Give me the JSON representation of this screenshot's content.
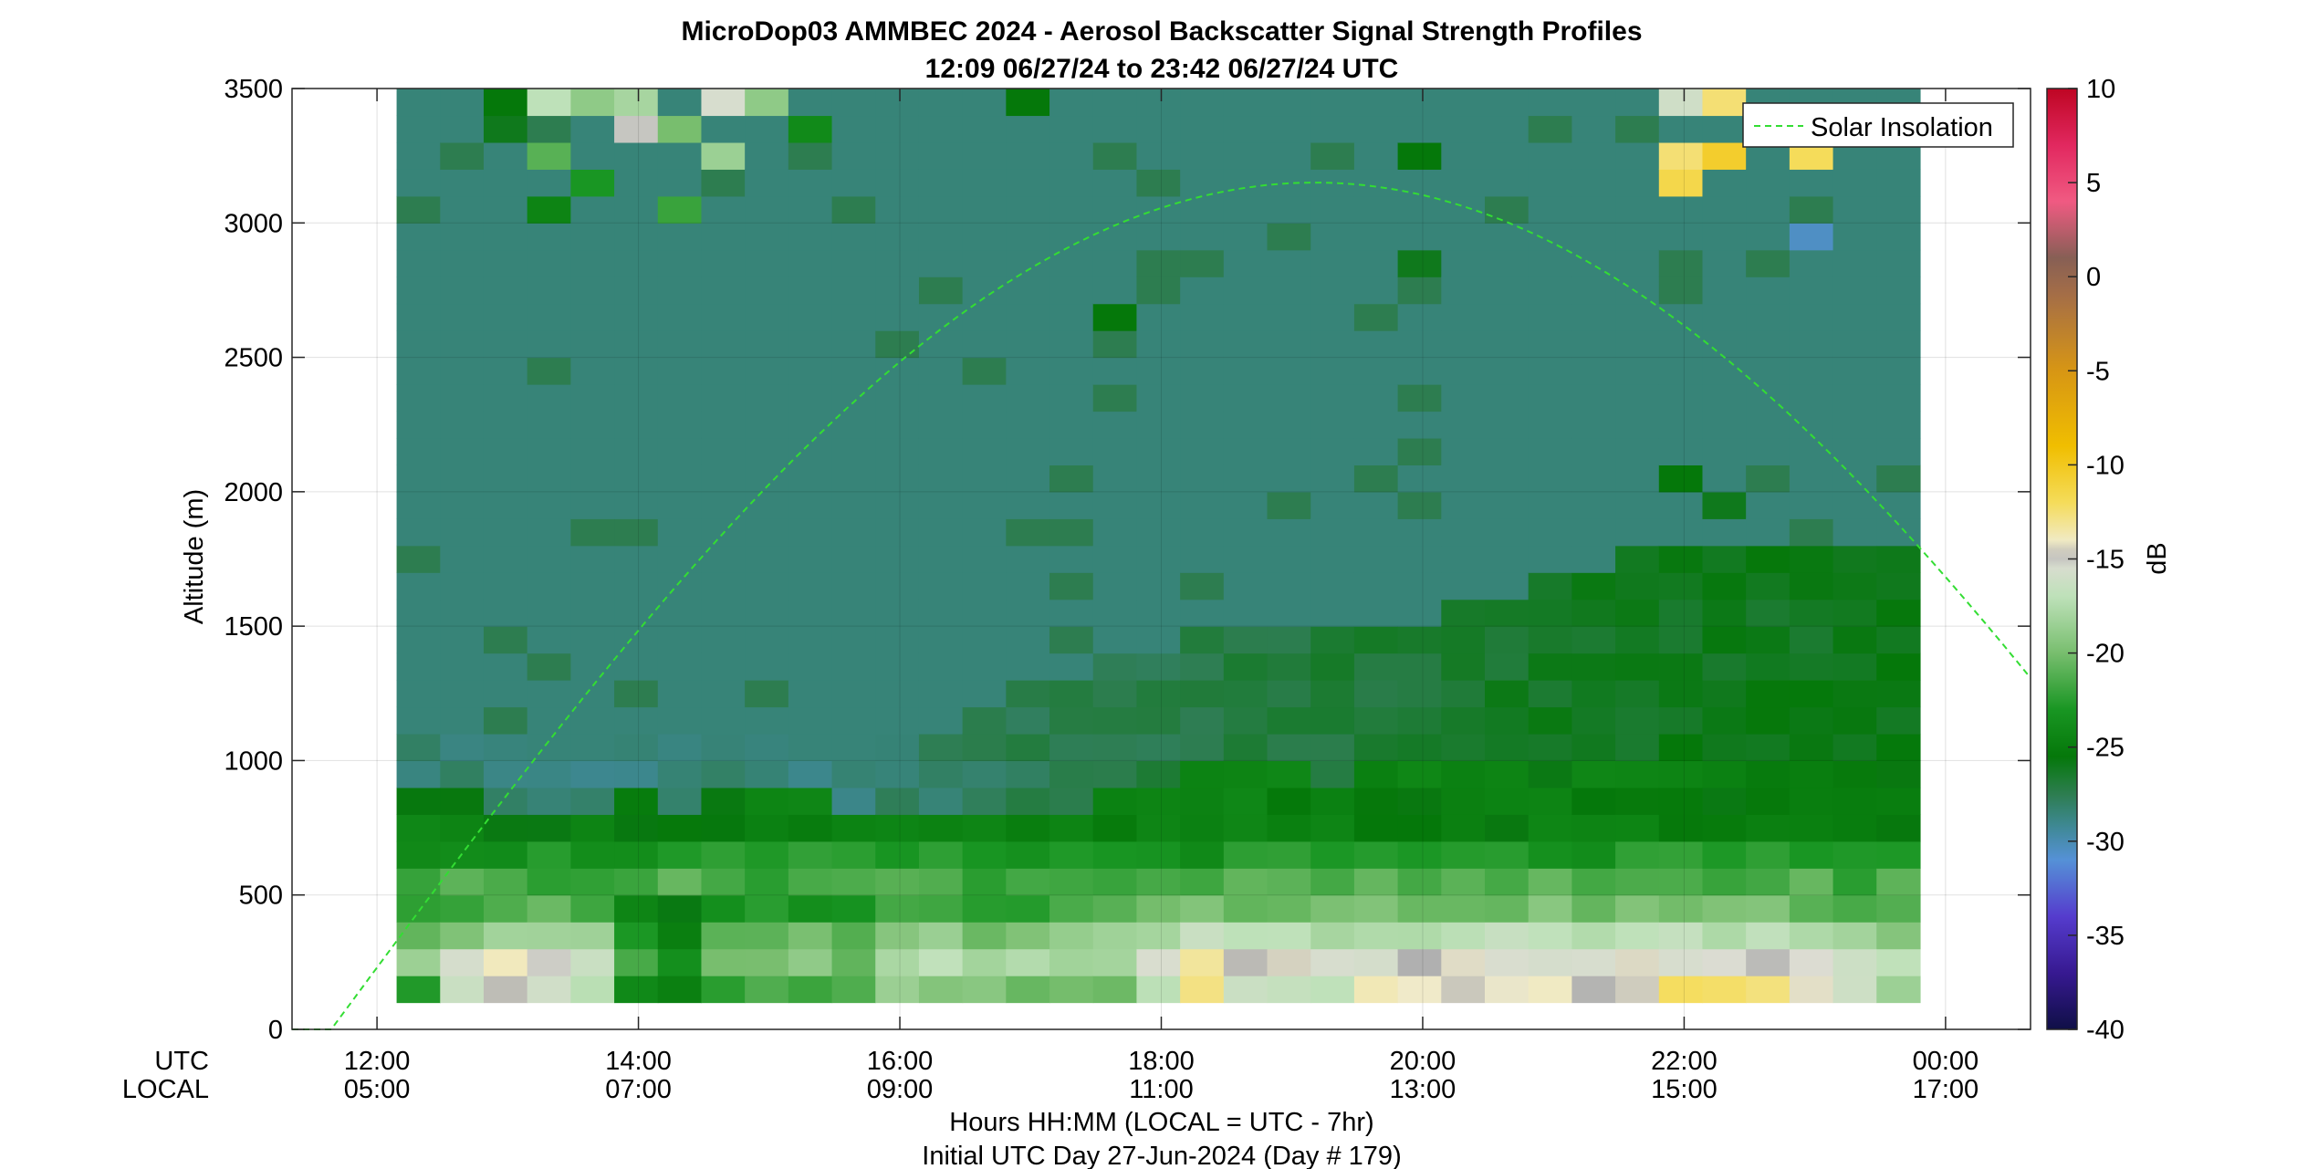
{
  "chart_data": {
    "type": "heatmap",
    "title": "MicroDop03 AMMBEC 2024 - Aerosol Backscatter Signal Strength Profiles",
    "subtitle": "12:09 06/27/24 to 23:42 06/27/24  UTC",
    "ylabel": "Altitude (m)",
    "xlabel": "Hours HH:MM  (LOCAL = UTC - 7hr)",
    "footer": "Initial UTC Day 27-Jun-2024 (Day # 179)",
    "x_row_labels": [
      "UTC",
      "LOCAL"
    ],
    "xlim_hours": [
      11.35,
      24.65
    ],
    "ylim": [
      0,
      3500
    ],
    "yticks": [
      "0",
      "500",
      "1000",
      "1500",
      "2000",
      "2500",
      "3000",
      "3500"
    ],
    "xticks": [
      {
        "hour": 12,
        "utc": "12:00",
        "local": "05:00"
      },
      {
        "hour": 14,
        "utc": "14:00",
        "local": "07:00"
      },
      {
        "hour": 16,
        "utc": "16:00",
        "local": "09:00"
      },
      {
        "hour": 18,
        "utc": "18:00",
        "local": "11:00"
      },
      {
        "hour": 20,
        "utc": "20:00",
        "local": "13:00"
      },
      {
        "hour": 22,
        "utc": "22:00",
        "local": "15:00"
      },
      {
        "hour": 24,
        "utc": "00:00",
        "local": "17:00"
      }
    ],
    "grid": true,
    "colorbar": {
      "label": "dB",
      "range": [
        -40,
        10
      ],
      "ticks": [
        "10",
        "5",
        "0",
        "-5",
        "-10",
        "-15",
        "-20",
        "-25",
        "-30",
        "-35",
        "-40"
      ]
    },
    "data_extent": {
      "t_start": 12.15,
      "t_end": 23.7,
      "alt_min": 100,
      "alt_max": 3500
    },
    "profile_step_hours": 0.333,
    "background_level_db": -28.5,
    "profile_mid_db": [
      -28.5,
      -28.5,
      -28.5,
      -28.5,
      -28.5,
      -28.5,
      -28.5,
      -28.5,
      -28.5,
      -28.5,
      -28.5,
      -28.2,
      -28.0,
      -27.8,
      -27.6,
      -27.5,
      -27.4,
      -27.3,
      -27.2,
      -27.0,
      -26.9,
      -26.8,
      -26.7,
      -26.6,
      -26.5,
      -26.4,
      -26.3,
      -26.2,
      -26.1,
      -26.0,
      -26.0,
      -26.0,
      -26.0,
      -26.0,
      -26.0
    ],
    "boundary_layer_top_m": [
      1100,
      1100,
      1050,
      1000,
      1000,
      1050,
      1100,
      1100,
      1050,
      1000,
      1000,
      1050,
      1100,
      1200,
      1250,
      1300,
      1400,
      1400,
      1450,
      1450,
      1500,
      1500,
      1500,
      1500,
      1600,
      1600,
      1700,
      1700,
      1800,
      1800,
      1800,
      1800,
      1800,
      1800,
      1800
    ],
    "mixed_layer_top_m": [
      850,
      820,
      800,
      800,
      780,
      820,
      800,
      820,
      850,
      820,
      800,
      780,
      780,
      760,
      760,
      780,
      820,
      900,
      950,
      950,
      950,
      900,
      950,
      950,
      950,
      950,
      950,
      950,
      1000,
      1000,
      1000,
      1000,
      1000,
      950,
      900
    ],
    "near_surface_db": [
      [
        -22,
        -17,
        -14,
        -16,
        -17,
        -24,
        -25,
        -22,
        -21,
        -22,
        -22,
        -19,
        -19,
        -20,
        -21,
        -20,
        -21,
        -17,
        -13,
        -16,
        -17,
        -17,
        -14,
        -14,
        -14,
        -14,
        -14,
        -14,
        -14,
        -12,
        -13,
        -13,
        -14,
        -16,
        -18
      ],
      [
        -18,
        -16,
        -14,
        -15,
        -16,
        -22,
        -24,
        -20,
        -20,
        -19,
        -20,
        -18,
        -17,
        -18,
        -18,
        -18,
        -18,
        -15,
        -14,
        -15,
        -15,
        -16,
        -15,
        -15,
        -15,
        -15,
        -16,
        -15,
        -15,
        -15,
        -15,
        -15,
        -15,
        -16,
        -17
      ],
      [
        -20,
        -19,
        -18,
        -18,
        -19,
        -23,
        -25,
        -21,
        -21,
        -20,
        -21,
        -20,
        -19,
        -20,
        -20,
        -19,
        -19,
        -18,
        -17,
        -17,
        -17,
        -18,
        -17,
        -17,
        -17,
        -17,
        -17,
        -17,
        -17,
        -17,
        -17,
        -17,
        -17,
        -18,
        -19
      ],
      [
        -22,
        -22,
        -21,
        -21,
        -22,
        -25,
        -26,
        -23,
        -23,
        -23,
        -23,
        -22,
        -22,
        -22,
        -22,
        -21,
        -21,
        -20,
        -19,
        -20,
        -20,
        -20,
        -20,
        -20,
        -20,
        -20,
        -20,
        -20,
        -20,
        -20,
        -20,
        -20,
        -21,
        -21,
        -21
      ]
    ],
    "upper_features": [
      {
        "t": 12.65,
        "alt": 3400,
        "db": -25.5
      },
      {
        "t": 12.65,
        "alt": 3300,
        "db": -26.0
      },
      {
        "t": 13.0,
        "alt": 3400,
        "db": -17.0
      },
      {
        "t": 13.0,
        "alt": 3200,
        "db": -21.0
      },
      {
        "t": 13.0,
        "alt": 3000,
        "db": -24.5
      },
      {
        "t": 13.35,
        "alt": 3400,
        "db": -19.0
      },
      {
        "t": 13.35,
        "alt": 3100,
        "db": -23.0
      },
      {
        "t": 13.65,
        "alt": 3400,
        "db": -18.0
      },
      {
        "t": 13.65,
        "alt": 3250,
        "db": -15.0
      },
      {
        "t": 14.0,
        "alt": 3300,
        "db": -20.0
      },
      {
        "t": 14.0,
        "alt": 3000,
        "db": -22.0
      },
      {
        "t": 14.35,
        "alt": 3400,
        "db": -15.5
      },
      {
        "t": 14.35,
        "alt": 3150,
        "db": -18.5
      },
      {
        "t": 14.65,
        "alt": 3350,
        "db": -19.0
      },
      {
        "t": 15.0,
        "alt": 3300,
        "db": -24.0
      },
      {
        "t": 16.65,
        "alt": 3400,
        "db": -25.5
      },
      {
        "t": 17.35,
        "alt": 2600,
        "db": -25.5
      },
      {
        "t": 19.85,
        "alt": 3200,
        "db": -25.5
      },
      {
        "t": 19.85,
        "alt": 2750,
        "db": -26.0
      },
      {
        "t": 21.65,
        "alt": 3400,
        "db": -16.0
      },
      {
        "t": 21.65,
        "alt": 3200,
        "db": -12.5
      },
      {
        "t": 21.65,
        "alt": 3050,
        "db": -11.5
      },
      {
        "t": 22.0,
        "alt": 3350,
        "db": -12.5
      },
      {
        "t": 22.0,
        "alt": 3200,
        "db": -10.5
      },
      {
        "t": 22.35,
        "alt": 3250,
        "db": -26.0
      },
      {
        "t": 22.65,
        "alt": 3150,
        "db": -12.0
      },
      {
        "t": 22.65,
        "alt": 2850,
        "db": -30.5
      },
      {
        "t": 23.0,
        "alt": 3450,
        "db": -26.0
      },
      {
        "t": 21.9,
        "alt": 2000,
        "db": -25.5
      },
      {
        "t": 22.2,
        "alt": 1900,
        "db": -26.0
      }
    ],
    "series": [
      {
        "name": "Solar Insolation",
        "color": "#33dd33",
        "style": "dashed"
      }
    ],
    "solar_curve": {
      "rise_hour": 11.65,
      "peak_hour": 19.2,
      "set_hour": 26.7,
      "peak_alt_m": 3150
    },
    "legend_location": "top-right"
  }
}
